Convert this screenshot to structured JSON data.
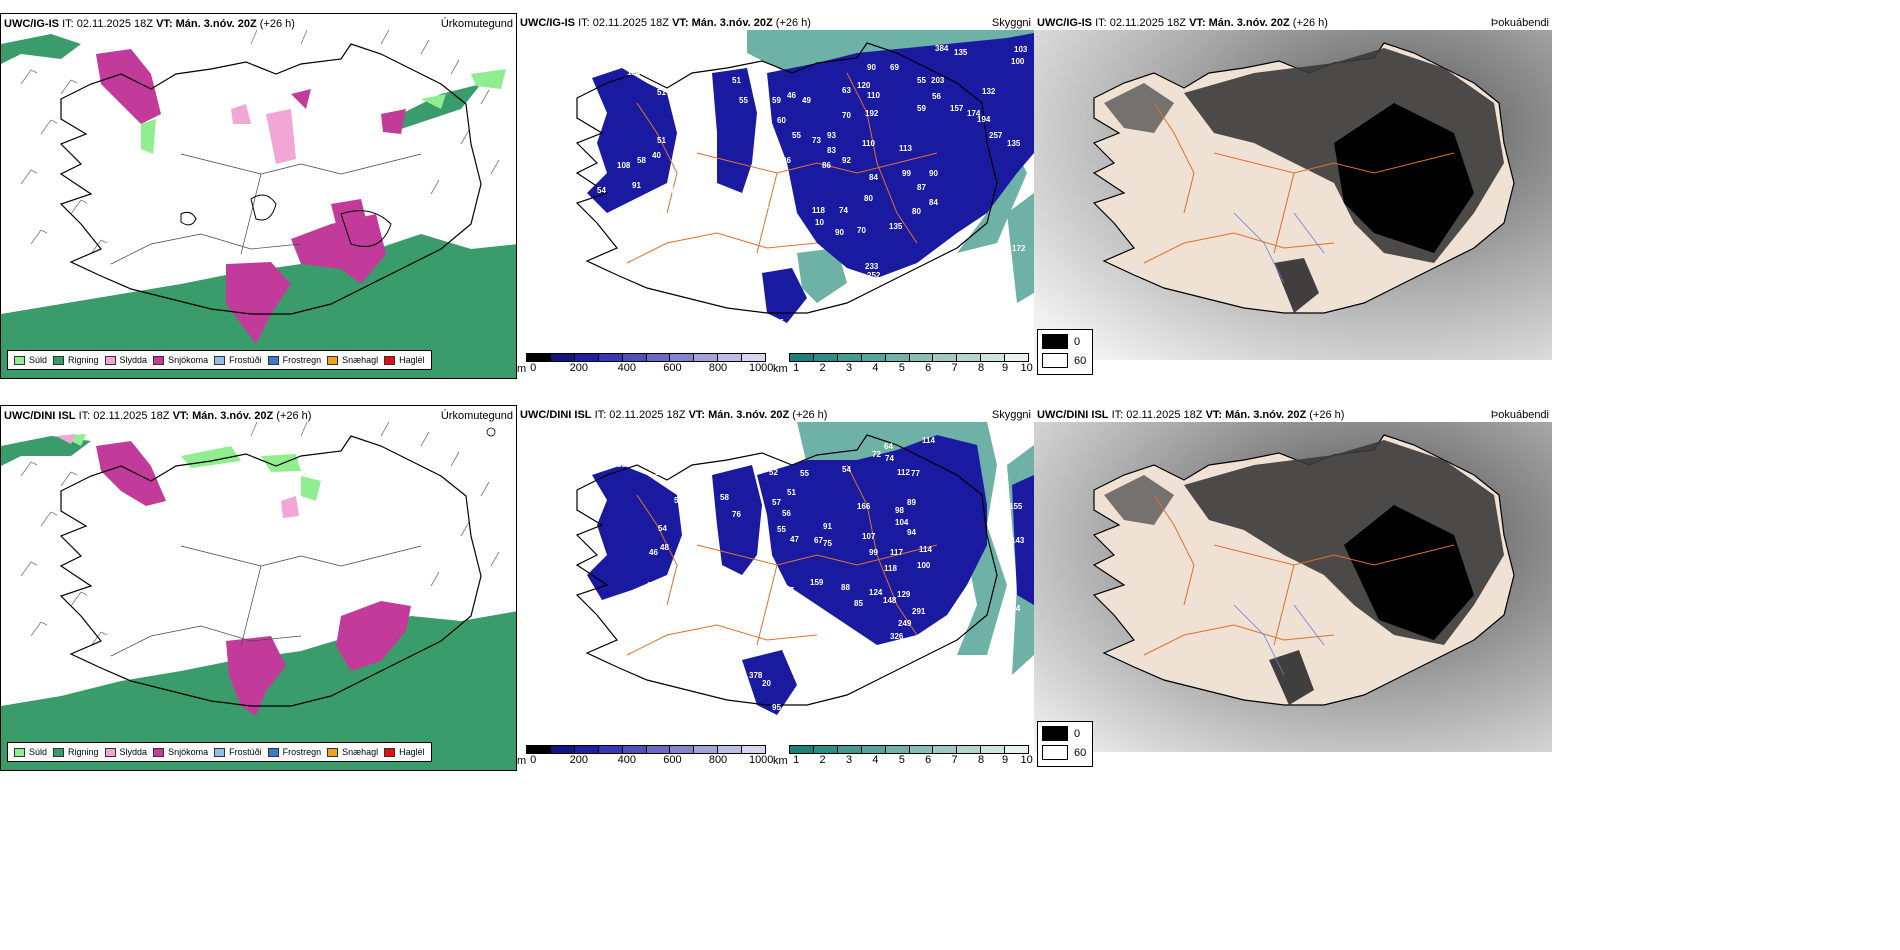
{
  "rows": [
    {
      "model": "UWC/IG-IS",
      "it_label": "IT:",
      "it": "02.11.2025 18Z",
      "vt_label": "VT:",
      "vt": "Mán. 3.nóv. 20Z",
      "lead": "(+26 h)",
      "ptype_title": "Úrkomutegund",
      "ceiling_title": "Skyggni",
      "fog_title": "Þokuábendi",
      "ceiling_labels": [
        "134",
        "51",
        "51",
        "40",
        "58",
        "108",
        "54",
        "91",
        "58",
        "51",
        "55",
        "59",
        "46",
        "49",
        "60",
        "53",
        "55",
        "73",
        "83",
        "86",
        "92",
        "93",
        "63",
        "120",
        "110",
        "90",
        "69",
        "70",
        "192",
        "110",
        "113",
        "99",
        "90",
        "84",
        "87",
        "80",
        "84",
        "135",
        "80",
        "74",
        "70",
        "90",
        "118",
        "10",
        "76",
        "233",
        "252",
        "384",
        "135",
        "103",
        "100",
        "132",
        "157",
        "174",
        "194",
        "257",
        "135",
        "172",
        "55",
        "203",
        "59",
        "56",
        "70",
        "69",
        "86"
      ],
      "ceiling_label_count_note": ""
    },
    {
      "model": "UWC/DINI ISL",
      "it_label": "IT:",
      "it": "02.11.2025 18Z",
      "vt_label": "VT:",
      "vt": "Mán. 3.nóv. 20Z",
      "lead": "(+26 h)",
      "ptype_title": "Úrkomutegund",
      "ceiling_title": "Skyggni",
      "fog_title": "Þokuábendi",
      "ceiling_labels": [
        "58",
        "100",
        "53",
        "54",
        "48",
        "46",
        "67",
        "45",
        "182",
        "58",
        "76",
        "57",
        "56",
        "55",
        "47",
        "52",
        "51",
        "55",
        "67",
        "75",
        "91",
        "54",
        "72",
        "74",
        "64",
        "114",
        "112",
        "77",
        "166",
        "89",
        "98",
        "104",
        "94",
        "114",
        "100",
        "107",
        "99",
        "117",
        "118",
        "159",
        "88",
        "85",
        "148",
        "124",
        "129",
        "291",
        "249",
        "326",
        "188",
        "469",
        "243",
        "378",
        "20",
        "12",
        "95",
        "155",
        "143",
        "364",
        "87"
      ],
      "ceiling_label_count_note": ""
    }
  ],
  "ptype_legend": [
    {
      "label": "Súld",
      "color": "#90ee90"
    },
    {
      "label": "Rigning",
      "color": "#3a9b6b"
    },
    {
      "label": "Slydda",
      "color": "#f2a6d6"
    },
    {
      "label": "Snjókoma",
      "color": "#c23b9b"
    },
    {
      "label": "Frostúði",
      "color": "#8fbfe8"
    },
    {
      "label": "Frostregn",
      "color": "#3a78c8"
    },
    {
      "label": "Snæhagl",
      "color": "#f0a020"
    },
    {
      "label": "Haglél",
      "color": "#e01010"
    }
  ],
  "cloud_base_scale": {
    "unit": "m",
    "ticks": [
      "0",
      "200",
      "400",
      "600",
      "800",
      "1000"
    ],
    "colors": [
      "#000000",
      "#151580",
      "#1f1fa0",
      "#3838b0",
      "#4f4fb8",
      "#6a6ac4",
      "#8585cf",
      "#a3a3da",
      "#bdbde5",
      "#d6d6ee"
    ]
  },
  "visibility_scale": {
    "unit": "km",
    "ticks": [
      "1",
      "2",
      "3",
      "4",
      "5",
      "6",
      "7",
      "8",
      "9",
      "10"
    ],
    "colors": [
      "#1e7f78",
      "#2f8c85",
      "#46998f",
      "#5aa59b",
      "#71b1a8",
      "#89bdb5",
      "#a1c9c2",
      "#b8d6d0",
      "#d0e4df",
      "#e8f2ef",
      "#ffffff"
    ]
  },
  "fog_scale": {
    "ticks": [
      "0",
      "60"
    ],
    "colors": [
      "#000000",
      "#ffffff"
    ]
  },
  "colors": {
    "land_fill": "#efe1d3",
    "roads": "#e0702a",
    "coast": "#000000",
    "rain": "#3a9b6b",
    "snow": "#c23b9b",
    "drizzle": "#90ee90",
    "sleet": "#f2a6d6",
    "cloud": "#1a1aa0",
    "fog_sea": "#bdbdbd"
  }
}
